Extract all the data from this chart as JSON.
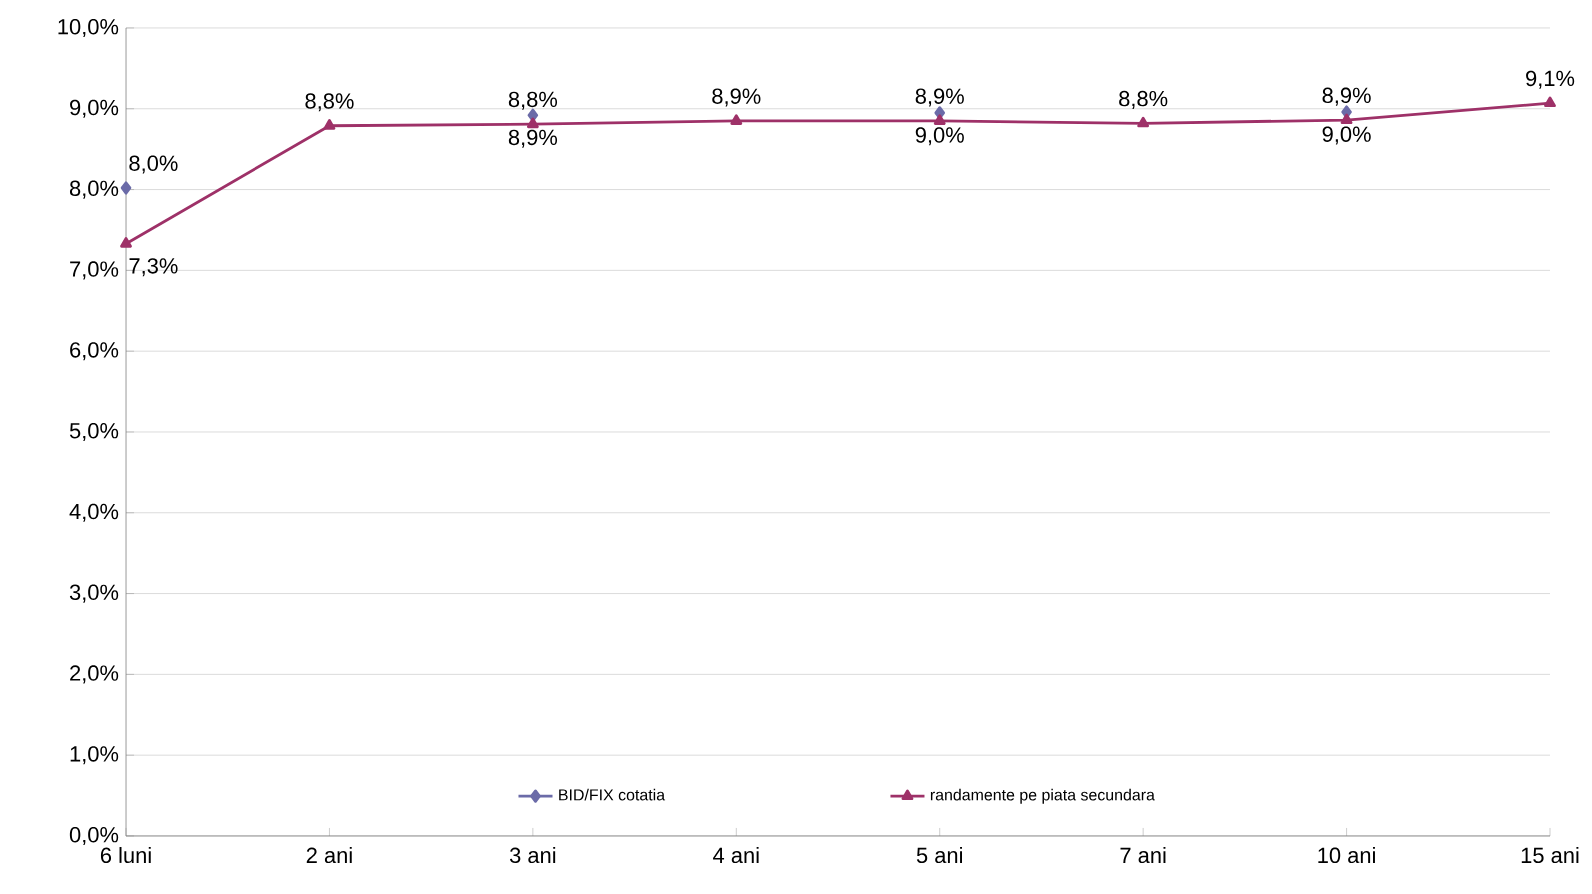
{
  "chart_data": {
    "type": "line",
    "categories": [
      "6 luni",
      "2 ani",
      "3 ani",
      "4 ani",
      "5 ani",
      "7 ani",
      "10 ani",
      "15 ani"
    ],
    "series": [
      {
        "name": "BID/FIX cotatia",
        "color": "#6b6ba8",
        "marker": "diamond",
        "values": [
          8.02,
          null,
          8.92,
          null,
          8.95,
          null,
          8.96,
          null
        ],
        "value_labels": [
          "8,0%",
          null,
          "8,9%",
          null,
          "9,0%",
          null,
          "9,0%",
          null
        ]
      },
      {
        "name": "randamente pe piata secundara",
        "color": "#9e3168",
        "marker": "triangle",
        "values": [
          7.33,
          8.79,
          8.81,
          8.85,
          8.85,
          8.82,
          8.86,
          9.07
        ],
        "value_labels": [
          "7,3%",
          "8,8%",
          "8,8%",
          "8,9%",
          "8,9%",
          "8,8%",
          "8,9%",
          "9,1%"
        ]
      }
    ],
    "ylim": [
      0,
      10
    ],
    "yticks": [
      {
        "value": 0,
        "label": "0,0%"
      },
      {
        "value": 1,
        "label": "1,0%"
      },
      {
        "value": 2,
        "label": "2,0%"
      },
      {
        "value": 3,
        "label": "3,0%"
      },
      {
        "value": 4,
        "label": "4,0%"
      },
      {
        "value": 5,
        "label": "5,0%"
      },
      {
        "value": 6,
        "label": "6,0%"
      },
      {
        "value": 7,
        "label": "7,0%"
      },
      {
        "value": 8,
        "label": "8,0%"
      },
      {
        "value": 9,
        "label": "9,0%"
      },
      {
        "value": 10,
        "label": "10,0%"
      }
    ],
    "grid": "y",
    "legend": "bottom",
    "line_style": "solid"
  }
}
